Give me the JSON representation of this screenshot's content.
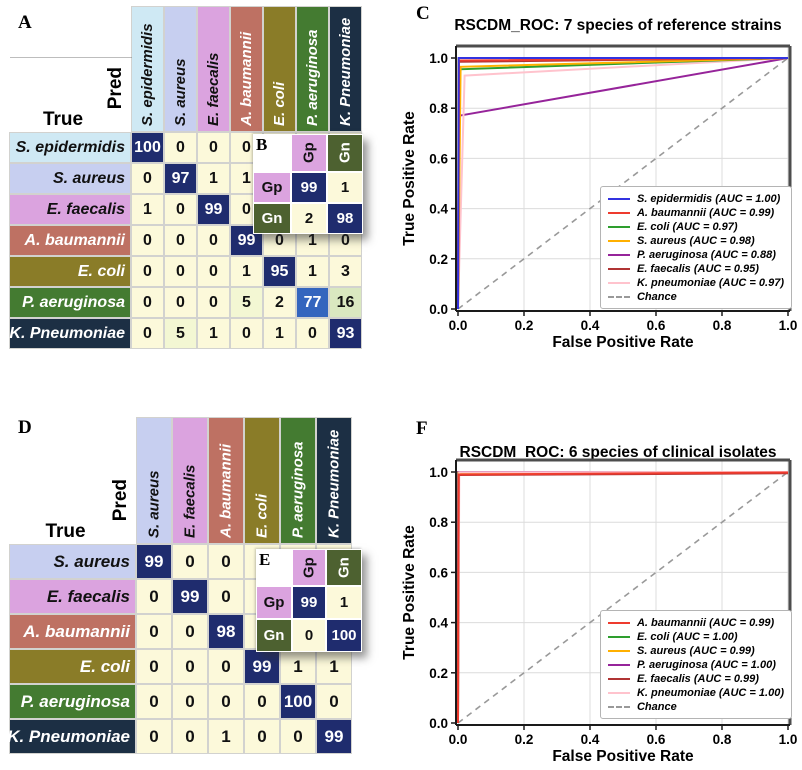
{
  "colors": {
    "cell_diag_navy": "#1F2C6E",
    "cell_off_cream": "#FCF9DA",
    "cell_mid_blue": "#3465BE",
    "cell_light_green": "#DAE8C0",
    "cell_pale_green": "#F3F7D3",
    "header_cyan": "#CFE9F4",
    "header_lavender": "#C7CFF0",
    "header_orchid": "#DBA3DF",
    "header_salmon": "#BE7163",
    "header_olive": "#8A7C28",
    "header_green": "#447B31",
    "header_navy": "#1C2F44",
    "gram_green": "#4D6130",
    "chance_gray": "#999999",
    "axis_yellow_line": "#EEE8AA"
  },
  "chart_data": [
    {
      "id": "confusionA",
      "type": "heatmap",
      "panel_label": "A",
      "xlabel": "Pred",
      "ylabel": "True",
      "columns": [
        {
          "label": "S. epidermidis",
          "bg": "#CFE9F4",
          "fg": "#111111"
        },
        {
          "label": "S. aureus",
          "bg": "#C7CFF0",
          "fg": "#111111"
        },
        {
          "label": "E. faecalis",
          "bg": "#DBA3DF",
          "fg": "#111111"
        },
        {
          "label": "A. baumannii",
          "bg": "#BE7163",
          "fg": "#ffffff"
        },
        {
          "label": "E. coli",
          "bg": "#8A7C28",
          "fg": "#ffffff"
        },
        {
          "label": "P. aeruginosa",
          "bg": "#447B31",
          "fg": "#ffffff"
        },
        {
          "label": "K. Pneumoniae",
          "bg": "#1C2F44",
          "fg": "#ffffff"
        }
      ],
      "rows": [
        {
          "label": "S. epidermidis",
          "bg": "#CFE9F4",
          "fg": "#111111",
          "cells": [
            {
              "v": "100",
              "k": "diag"
            },
            {
              "v": "0"
            },
            {
              "v": "0"
            },
            {
              "v": "0"
            },
            null,
            null,
            null
          ]
        },
        {
          "label": "S. aureus",
          "bg": "#C7CFF0",
          "fg": "#111111",
          "cells": [
            {
              "v": "0"
            },
            {
              "v": "97",
              "k": "diag"
            },
            {
              "v": "1"
            },
            {
              "v": "1"
            },
            null,
            null,
            null
          ]
        },
        {
          "label": "E. faecalis",
          "bg": "#DBA3DF",
          "fg": "#111111",
          "cells": [
            {
              "v": "1"
            },
            {
              "v": "0"
            },
            {
              "v": "99",
              "k": "diag"
            },
            {
              "v": "0"
            },
            null,
            null,
            null
          ]
        },
        {
          "label": "A. baumannii",
          "bg": "#BE7163",
          "fg": "#ffffff",
          "cells": [
            {
              "v": "0"
            },
            {
              "v": "0"
            },
            {
              "v": "0"
            },
            {
              "v": "99",
              "k": "diag"
            },
            {
              "v": "0"
            },
            {
              "v": "1"
            },
            {
              "v": "0"
            }
          ]
        },
        {
          "label": "E. coli",
          "bg": "#8A7C28",
          "fg": "#ffffff",
          "cells": [
            {
              "v": "0"
            },
            {
              "v": "0"
            },
            {
              "v": "0"
            },
            {
              "v": "1"
            },
            {
              "v": "95",
              "k": "diag"
            },
            {
              "v": "1"
            },
            {
              "v": "3"
            }
          ]
        },
        {
          "label": "P. aeruginosa",
          "bg": "#447B31",
          "fg": "#ffffff",
          "cells": [
            {
              "v": "0"
            },
            {
              "v": "0"
            },
            {
              "v": "0"
            },
            {
              "v": "5",
              "k": "pg"
            },
            {
              "v": "2"
            },
            {
              "v": "77",
              "k": "mid"
            },
            {
              "v": "16",
              "k": "lg"
            }
          ]
        },
        {
          "label": "K. Pneumoniae",
          "bg": "#1C2F44",
          "fg": "#ffffff",
          "cells": [
            {
              "v": "0"
            },
            {
              "v": "5",
              "k": "pg"
            },
            {
              "v": "1"
            },
            {
              "v": "0"
            },
            {
              "v": "1"
            },
            {
              "v": "0"
            },
            {
              "v": "93",
              "k": "diag"
            }
          ]
        }
      ]
    },
    {
      "id": "gramB",
      "type": "heatmap",
      "panel_label": "B",
      "columns": [
        {
          "label": "Gp",
          "bg": "#DBA3DF",
          "fg": "#111111"
        },
        {
          "label": "Gn",
          "bg": "#4D6130",
          "fg": "#ffffff"
        }
      ],
      "rows": [
        {
          "label": "Gp",
          "bg": "#DBA3DF",
          "fg": "#111111",
          "cells": [
            {
              "v": "99",
              "k": "diag"
            },
            {
              "v": "1"
            }
          ]
        },
        {
          "label": "Gn",
          "bg": "#4D6130",
          "fg": "#ffffff",
          "cells": [
            {
              "v": "2"
            },
            {
              "v": "98",
              "k": "diag"
            }
          ]
        }
      ]
    },
    {
      "id": "rocC",
      "type": "line",
      "panel_label": "C",
      "title": "RSCDM_ROC: 7 species of reference strains",
      "xlabel": "False Positive Rate",
      "ylabel": "True Positive Rate",
      "xlim": [
        0,
        1
      ],
      "ylim": [
        0,
        1
      ],
      "xticks": [
        "0.0",
        "0.2",
        "0.4",
        "0.6",
        "0.8",
        "1.0"
      ],
      "yticks": [
        "0.0",
        "0.2",
        "0.4",
        "0.6",
        "0.8",
        "1.0"
      ],
      "grid": true,
      "legend_position": "lower right",
      "series": [
        {
          "name": "S. epidermidis",
          "auc": "1.00",
          "color": "#3333E0",
          "points": [
            [
              0,
              0
            ],
            [
              0.002,
              1.0
            ],
            [
              1,
              1
            ]
          ]
        },
        {
          "name": "A. baumannii",
          "auc": "0.99",
          "color": "#EE3B2E",
          "points": [
            [
              0,
              0
            ],
            [
              0.003,
              0.99
            ],
            [
              1,
              1
            ]
          ]
        },
        {
          "name": "E. coli",
          "auc": "0.97",
          "color": "#2E9E2E",
          "points": [
            [
              0,
              0
            ],
            [
              0.004,
              0.955
            ],
            [
              1,
              1
            ]
          ]
        },
        {
          "name": "S. aureus",
          "auc": "0.98",
          "color": "#FFB000",
          "points": [
            [
              0,
              0
            ],
            [
              0.008,
              0.965
            ],
            [
              1,
              1
            ]
          ]
        },
        {
          "name": "P. aeruginosa",
          "auc": "0.88",
          "color": "#96249A",
          "points": [
            [
              0,
              0
            ],
            [
              0.004,
              0.77
            ],
            [
              1,
              1
            ]
          ]
        },
        {
          "name": "E. faecalis",
          "auc": "0.95",
          "color": "#B03434",
          "points": [
            [
              0,
              0
            ],
            [
              0.003,
              0.985
            ],
            [
              1,
              1
            ]
          ]
        },
        {
          "name": "K. pneumoniae",
          "auc": "0.97",
          "color": "#FFC3CD",
          "points": [
            [
              0,
              0
            ],
            [
              0.02,
              0.93
            ],
            [
              1,
              1
            ]
          ]
        },
        {
          "name": "Chance",
          "auc": null,
          "color": "#999999",
          "dash": true,
          "points": [
            [
              0,
              0
            ],
            [
              1,
              1
            ]
          ]
        }
      ],
      "draw_order": [
        7,
        4,
        6,
        2,
        3,
        5,
        1,
        0
      ]
    },
    {
      "id": "confusionD",
      "type": "heatmap",
      "panel_label": "D",
      "xlabel": "Pred",
      "ylabel": "True",
      "columns": [
        {
          "label": "S. aureus",
          "bg": "#C7CFF0",
          "fg": "#111111"
        },
        {
          "label": "E. faecalis",
          "bg": "#DBA3DF",
          "fg": "#111111"
        },
        {
          "label": "A. baumannii",
          "bg": "#BE7163",
          "fg": "#ffffff"
        },
        {
          "label": "E. coli",
          "bg": "#8A7C28",
          "fg": "#ffffff"
        },
        {
          "label": "P. aeruginosa",
          "bg": "#447B31",
          "fg": "#ffffff"
        },
        {
          "label": "K. Pneumoniae",
          "bg": "#1C2F44",
          "fg": "#ffffff"
        }
      ],
      "rows": [
        {
          "label": "S. aureus",
          "bg": "#C7CFF0",
          "fg": "#111111",
          "cells": [
            {
              "v": "99",
              "k": "diag"
            },
            {
              "v": "0"
            },
            {
              "v": "0"
            },
            {
              "v": "0"
            },
            null,
            null
          ]
        },
        {
          "label": "E. faecalis",
          "bg": "#DBA3DF",
          "fg": "#111111",
          "cells": [
            {
              "v": "0"
            },
            {
              "v": "99",
              "k": "diag"
            },
            {
              "v": "0"
            },
            {
              "v": "0"
            },
            null,
            null
          ]
        },
        {
          "label": "A. baumannii",
          "bg": "#BE7163",
          "fg": "#ffffff",
          "cells": [
            {
              "v": "0"
            },
            {
              "v": "0"
            },
            {
              "v": "98",
              "k": "diag"
            },
            null,
            null,
            null
          ]
        },
        {
          "label": "E. coli",
          "bg": "#8A7C28",
          "fg": "#ffffff",
          "cells": [
            {
              "v": "0"
            },
            {
              "v": "0"
            },
            {
              "v": "0"
            },
            {
              "v": "99",
              "k": "diag"
            },
            {
              "v": "1"
            },
            {
              "v": "1"
            }
          ]
        },
        {
          "label": "P. aeruginosa",
          "bg": "#447B31",
          "fg": "#ffffff",
          "cells": [
            {
              "v": "0"
            },
            {
              "v": "0"
            },
            {
              "v": "0"
            },
            {
              "v": "0"
            },
            {
              "v": "100",
              "k": "diag"
            },
            {
              "v": "0"
            }
          ]
        },
        {
          "label": "K. Pneumoniae",
          "bg": "#1C2F44",
          "fg": "#ffffff",
          "cells": [
            {
              "v": "0"
            },
            {
              "v": "0"
            },
            {
              "v": "1"
            },
            {
              "v": "0"
            },
            {
              "v": "0"
            },
            {
              "v": "99",
              "k": "diag"
            }
          ]
        }
      ]
    },
    {
      "id": "gramE",
      "type": "heatmap",
      "panel_label": "E",
      "columns": [
        {
          "label": "Gp",
          "bg": "#DBA3DF",
          "fg": "#111111"
        },
        {
          "label": "Gn",
          "bg": "#4D6130",
          "fg": "#ffffff"
        }
      ],
      "rows": [
        {
          "label": "Gp",
          "bg": "#DBA3DF",
          "fg": "#111111",
          "cells": [
            {
              "v": "99",
              "k": "diag"
            },
            {
              "v": "1"
            }
          ]
        },
        {
          "label": "Gn",
          "bg": "#4D6130",
          "fg": "#ffffff",
          "cells": [
            {
              "v": "0"
            },
            {
              "v": "100",
              "k": "diag"
            }
          ]
        }
      ]
    },
    {
      "id": "rocF",
      "type": "line",
      "panel_label": "F",
      "title": "RSCDM_ROC: 6 species of clinical isolates",
      "xlabel": "False Positive Rate",
      "ylabel": "True Positive Rate",
      "xlim": [
        0,
        1
      ],
      "ylim": [
        0,
        1
      ],
      "xticks": [
        "0.0",
        "0.2",
        "0.4",
        "0.6",
        "0.8",
        "1.0"
      ],
      "yticks": [
        "0.0",
        "0.2",
        "0.4",
        "0.6",
        "0.8",
        "1.0"
      ],
      "grid": true,
      "legend_position": "lower right",
      "series": [
        {
          "name": "A. baumannii",
          "auc": "0.99",
          "color": "#EE3B2E",
          "points": [
            [
              0,
              0
            ],
            [
              0.002,
              0.99
            ],
            [
              1,
              0.998
            ]
          ]
        },
        {
          "name": "E. coli",
          "auc": "1.00",
          "color": "#2E9E2E",
          "points": [
            [
              0,
              0
            ],
            [
              0.001,
              1.0
            ],
            [
              1,
              1
            ]
          ]
        },
        {
          "name": "S. aureus",
          "auc": "0.99",
          "color": "#FFB000",
          "points": [
            [
              0,
              0
            ],
            [
              0.002,
              0.997
            ],
            [
              1,
              1
            ]
          ]
        },
        {
          "name": "P. aeruginosa",
          "auc": "1.00",
          "color": "#96249A",
          "points": [
            [
              0,
              0
            ],
            [
              0.001,
              1.0
            ],
            [
              1,
              1
            ]
          ]
        },
        {
          "name": "E. faecalis",
          "auc": "0.99",
          "color": "#B03434",
          "points": [
            [
              0,
              0
            ],
            [
              0.002,
              0.988
            ],
            [
              1,
              0.995
            ]
          ]
        },
        {
          "name": "K. pneumoniae",
          "auc": "1.00",
          "color": "#FFC3CD",
          "points": [
            [
              0,
              0
            ],
            [
              0.004,
              0.999
            ],
            [
              1,
              1
            ]
          ]
        },
        {
          "name": "Chance",
          "auc": null,
          "color": "#999999",
          "dash": true,
          "points": [
            [
              0,
              0
            ],
            [
              1,
              1
            ]
          ]
        }
      ],
      "draw_order": [
        6,
        1,
        3,
        2,
        5,
        4,
        0
      ]
    }
  ]
}
